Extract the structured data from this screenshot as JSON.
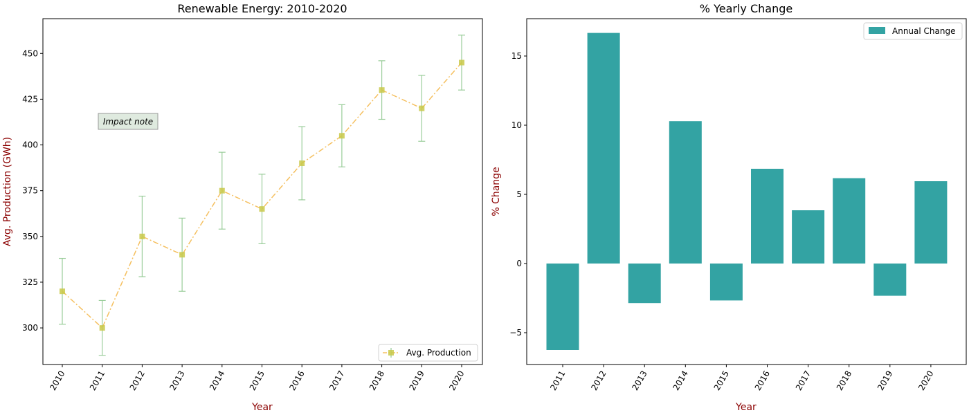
{
  "chart_data": [
    {
      "type": "line",
      "title": "Renewable Energy: 2010-2020",
      "xlabel": "Year",
      "ylabel": "Avg. Production (GWh)",
      "categories": [
        "2010",
        "2011",
        "2012",
        "2013",
        "2014",
        "2015",
        "2016",
        "2017",
        "2018",
        "2019",
        "2020"
      ],
      "series": [
        {
          "name": "Avg. Production",
          "values": [
            320,
            300,
            350,
            340,
            375,
            365,
            390,
            405,
            430,
            420,
            445
          ],
          "error": [
            18,
            15,
            22,
            20,
            21,
            19,
            20,
            17,
            16,
            18,
            15
          ],
          "color": "#f5a623",
          "marker_color": "#c9c94a",
          "error_color": "#90c890"
        }
      ],
      "yticks": [
        300,
        325,
        350,
        375,
        400,
        425,
        450
      ],
      "ylim": [
        280,
        469
      ],
      "annotation": "Impact note",
      "legend_position": "lower-right",
      "grid": false
    },
    {
      "type": "bar",
      "title": "% Yearly Change",
      "xlabel": "Year",
      "ylabel": "% Change",
      "categories": [
        "2011",
        "2012",
        "2013",
        "2014",
        "2015",
        "2016",
        "2017",
        "2018",
        "2019",
        "2020"
      ],
      "series": [
        {
          "name": "Annual Change",
          "values": [
            -6.25,
            16.67,
            -2.86,
            10.29,
            -2.67,
            6.85,
            3.85,
            6.17,
            -2.33,
            5.95
          ],
          "color": "#33a3a3"
        }
      ],
      "yticks": [
        -5,
        0,
        5,
        10,
        15
      ],
      "ylim": [
        -7.3,
        17.7
      ],
      "legend_position": "upper-right",
      "grid": false
    }
  ]
}
